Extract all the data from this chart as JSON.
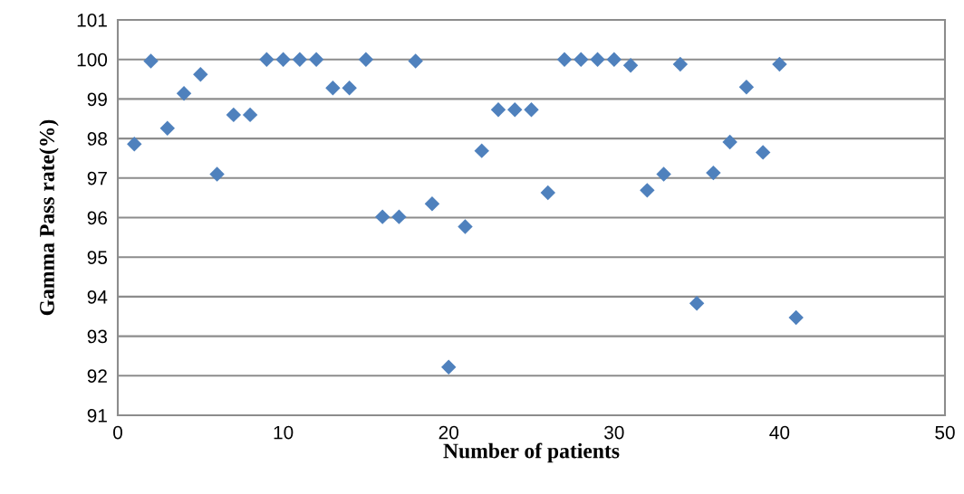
{
  "chart_data": {
    "type": "scatter",
    "xlabel": "Number of patients",
    "ylabel": "Gamma Pass rate(%)",
    "x": [
      1,
      2,
      3,
      4,
      5,
      6,
      7,
      8,
      9,
      10,
      11,
      12,
      13,
      14,
      15,
      16,
      17,
      18,
      19,
      20,
      21,
      22,
      23,
      24,
      25,
      26,
      27,
      28,
      29,
      30,
      31,
      32,
      33,
      34,
      35,
      36,
      37,
      38,
      39,
      40,
      41
    ],
    "series": [
      {
        "color": "#4f81bd",
        "values": [
          97.86,
          99.96,
          98.26,
          99.14,
          99.62,
          97.1,
          98.6,
          98.6,
          100,
          100,
          100,
          100,
          99.28,
          99.28,
          100,
          96.02,
          96.02,
          99.96,
          96.35,
          92.22,
          95.77,
          97.69,
          98.73,
          98.73,
          98.73,
          96.63,
          100,
          100,
          100,
          100,
          99.85,
          96.69,
          97.1,
          99.88,
          93.83,
          97.13,
          97.91,
          99.3,
          97.65,
          99.88,
          93.47
        ]
      }
    ],
    "xlim": [
      0,
      50
    ],
    "xticks": [
      0,
      10,
      20,
      30,
      40,
      50
    ],
    "ylim": [
      91,
      101
    ],
    "yticks": [
      91,
      92,
      93,
      94,
      95,
      96,
      97,
      98,
      99,
      100,
      101
    ],
    "grid": "y",
    "marker": "diamond",
    "legend": false
  }
}
